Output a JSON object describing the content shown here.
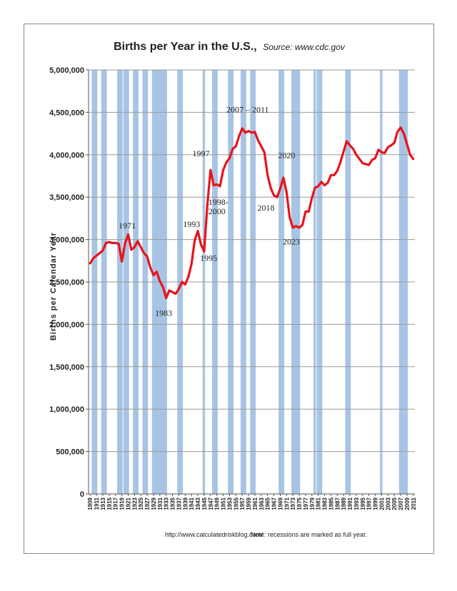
{
  "chart_data": {
    "type": "line",
    "title": "Births per Year in the U.S.,",
    "subtitle": "Source: www.cdc.gov",
    "ylabel": "Births per Calendar Year",
    "xlabel": "",
    "ylim": [
      0,
      5000000
    ],
    "xlim": [
      1909,
      2012
    ],
    "yticks": [
      0,
      500000,
      1000000,
      1500000,
      2000000,
      2500000,
      3000000,
      3500000,
      4000000,
      4500000,
      5000000
    ],
    "ytick_labels": [
      "0",
      "500,000",
      "1,000,000",
      "1,500,000",
      "2,000,000",
      "2,500,000",
      "3,000,000",
      "3,500,000",
      "4,000,000",
      "4,500,000",
      "5,000,000"
    ],
    "xtick_labels": [
      "1909",
      "1911",
      "1913",
      "1915",
      "1917",
      "1919",
      "1921",
      "1923",
      "1925",
      "1927",
      "1929",
      "1931",
      "1933",
      "1935",
      "1937",
      "1939",
      "1941",
      "1943",
      "1945",
      "1947",
      "1949",
      "1951",
      "1953",
      "1955",
      "1957",
      "1959",
      "1961",
      "1963",
      "1965",
      "1967",
      "1969",
      "1971",
      "1973",
      "1975",
      "1977",
      "1979",
      "1981",
      "1983",
      "1985",
      "1987",
      "1989",
      "1991",
      "1993",
      "1995",
      "1997",
      "1999",
      "2001",
      "2003",
      "2005",
      "2007",
      "2009",
      "2011"
    ],
    "grid": true,
    "line_color": "#e8141b",
    "recession_color": "#a8c4e4",
    "recessions": [
      [
        1910,
        1911
      ],
      [
        1913,
        1914
      ],
      [
        1918,
        1919
      ],
      [
        1920,
        1921
      ],
      [
        1923,
        1924
      ],
      [
        1926,
        1927
      ],
      [
        1929,
        1933
      ],
      [
        1937,
        1938
      ],
      [
        1945,
        1945
      ],
      [
        1948,
        1949
      ],
      [
        1953,
        1954
      ],
      [
        1957,
        1958
      ],
      [
        1960,
        1961
      ],
      [
        1969,
        1970
      ],
      [
        1973,
        1975
      ],
      [
        1980,
        1980
      ],
      [
        1981,
        1982
      ],
      [
        1990,
        1991
      ],
      [
        2001,
        2001
      ],
      [
        2007,
        2009
      ]
    ],
    "series": [
      {
        "x": [
          1909,
          1910,
          1911,
          1912,
          1913,
          1914,
          1915,
          1916,
          1917,
          1918,
          1919,
          1920,
          1921,
          1922,
          1923,
          1924,
          1925,
          1926,
          1927,
          1928,
          1929,
          1930,
          1931,
          1932,
          1933,
          1934,
          1935,
          1936,
          1937,
          1938,
          1939,
          1940,
          1941,
          1942,
          1943,
          1944,
          1945,
          1946,
          1947,
          1948,
          1949,
          1950,
          1951,
          1952,
          1953,
          1954,
          1955,
          1956,
          1957,
          1958,
          1959,
          1960,
          1961,
          1962,
          1963,
          1964,
          1965,
          1966,
          1967,
          1968,
          1969,
          1970,
          1971,
          1972,
          1973,
          1974,
          1975,
          1976,
          1977,
          1978,
          1979,
          1980,
          1981,
          1982,
          1983,
          1984,
          1985,
          1986,
          1987,
          1988,
          1989,
          1990,
          1991,
          1992,
          1993,
          1994,
          1995,
          1996,
          1997,
          1998,
          1999,
          2000,
          2001,
          2002,
          2003,
          2004,
          2005,
          2006,
          2007,
          2008,
          2009,
          2010,
          2011
        ],
        "values": [
          2720000,
          2780000,
          2810000,
          2840000,
          2870000,
          2960000,
          2970000,
          2960000,
          2960000,
          2950000,
          2740000,
          2950000,
          3060000,
          2880000,
          2910000,
          2980000,
          2910000,
          2840000,
          2800000,
          2670000,
          2580000,
          2620000,
          2510000,
          2440000,
          2310000,
          2400000,
          2380000,
          2360000,
          2420000,
          2500000,
          2470000,
          2560000,
          2710000,
          2990000,
          3100000,
          2940000,
          2860000,
          3410000,
          3820000,
          3640000,
          3650000,
          3630000,
          3820000,
          3910000,
          3960000,
          4070000,
          4100000,
          4220000,
          4310000,
          4260000,
          4280000,
          4260000,
          4270000,
          4170000,
          4100000,
          4030000,
          3760000,
          3610000,
          3520000,
          3500000,
          3600000,
          3730000,
          3560000,
          3260000,
          3140000,
          3160000,
          3140000,
          3170000,
          3330000,
          3330000,
          3490000,
          3610000,
          3630000,
          3680000,
          3640000,
          3670000,
          3760000,
          3760000,
          3810000,
          3910000,
          4040000,
          4160000,
          4110000,
          4070000,
          4000000,
          3950000,
          3900000,
          3890000,
          3880000,
          3940000,
          3960000,
          4060000,
          4030000,
          4020000,
          4090000,
          4110000,
          4140000,
          4270000,
          4320000,
          4250000,
          4130000,
          4000000,
          3950000
        ]
      }
    ],
    "annotations": [
      {
        "text": "1971",
        "x": 1918.5,
        "y": 3130000,
        "anchor": "start"
      },
      {
        "text": "1983",
        "x": 1930,
        "y": 2100000,
        "anchor": "start"
      },
      {
        "text": "1993",
        "x": 1938.8,
        "y": 3150000,
        "anchor": "start"
      },
      {
        "text": "1995",
        "x": 1944.2,
        "y": 2750000,
        "anchor": "start"
      },
      {
        "text": "1997",
        "x": 1941.8,
        "y": 3980000,
        "anchor": "start"
      },
      {
        "text": "1998-",
        "x": 1946.8,
        "y": 3410000,
        "anchor": "start"
      },
      {
        "text": "2000",
        "x": 1946.8,
        "y": 3300000,
        "anchor": "start"
      },
      {
        "text": "2007 – 2011",
        "x": 1952.5,
        "y": 4500000,
        "anchor": "start"
      },
      {
        "text": "2018",
        "x": 1962.3,
        "y": 3340000,
        "anchor": "start"
      },
      {
        "text": "2020",
        "x": 1968.8,
        "y": 3960000,
        "anchor": "start"
      },
      {
        "text": "2023",
        "x": 1970.3,
        "y": 2940000,
        "anchor": "start"
      }
    ],
    "footer_left": "http://www.calculatedriskblog.com/",
    "footer_right": "Note: recessions are marked as full year."
  }
}
